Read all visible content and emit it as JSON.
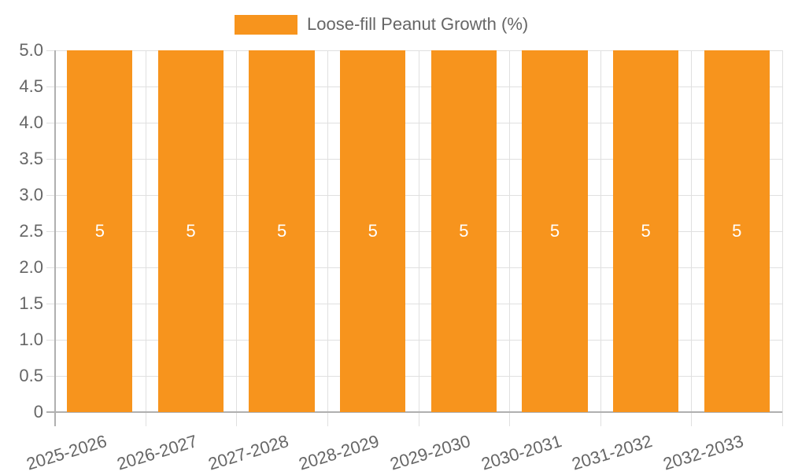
{
  "chart_data": {
    "type": "bar",
    "title": "",
    "legend": [
      {
        "label": "Loose-fill Peanut Growth (%)",
        "color": "#f7941d"
      }
    ],
    "legend_position": "top",
    "categories": [
      "2025-2026",
      "2026-2027",
      "2027-2028",
      "2028-2029",
      "2029-2030",
      "2030-2031",
      "2031-2032",
      "2032-2033"
    ],
    "series": [
      {
        "name": "Loose-fill Peanut Growth (%)",
        "values": [
          5,
          5,
          5,
          5,
          5,
          5,
          5,
          5
        ],
        "color": "#f7941d"
      }
    ],
    "data_labels": [
      "5",
      "5",
      "5",
      "5",
      "5",
      "5",
      "5",
      "5"
    ],
    "xlabel": "",
    "ylabel": "",
    "ylim": [
      0,
      5
    ],
    "yticks": [
      "0",
      "0.5",
      "1.0",
      "1.5",
      "2.0",
      "2.5",
      "3.0",
      "3.5",
      "4.0",
      "4.5",
      "5.0"
    ],
    "grid": true
  }
}
